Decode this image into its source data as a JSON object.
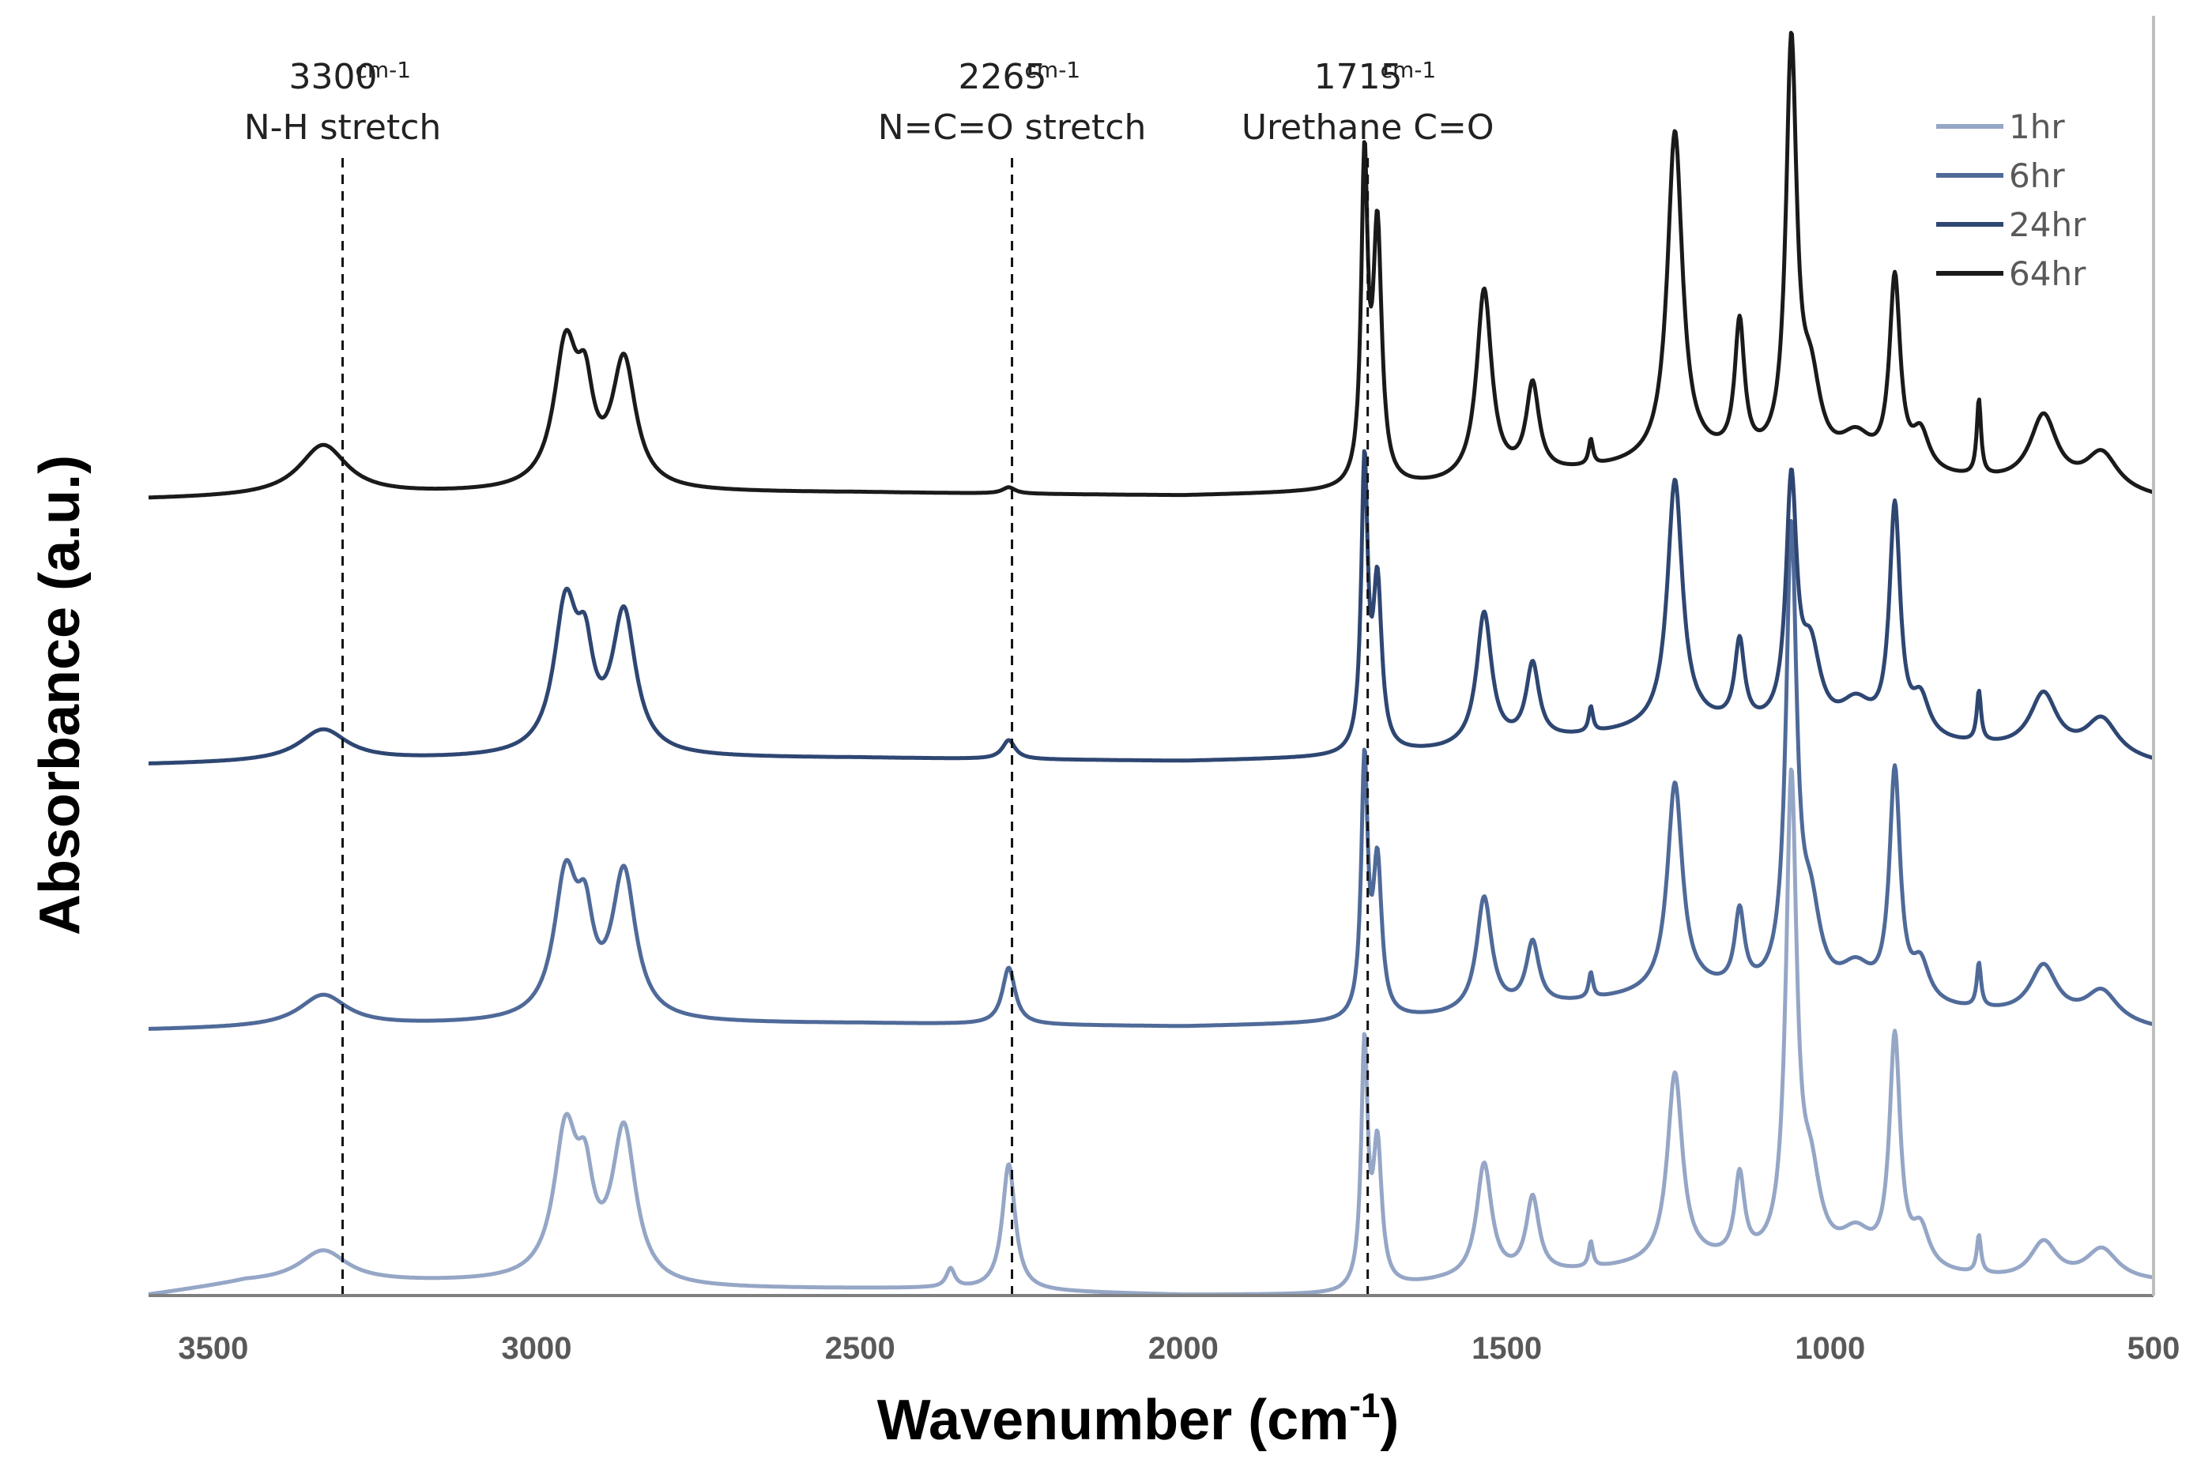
{
  "chart_data": {
    "type": "line",
    "title": "",
    "xlabel": "Wavenumber (cm",
    "xlabel_sup": "-1",
    "xlabel_close": ")",
    "ylabel": "Absorbance (a.u.)",
    "xlim": [
      3600,
      500
    ],
    "x_reversed": true,
    "x_ticks": [
      3500,
      3000,
      2500,
      2000,
      1500,
      1000,
      500
    ],
    "x_tick_labels": [
      "3500",
      "3000",
      "2500",
      "2000",
      "1500",
      "1000",
      "500"
    ],
    "y_ticks_shown": false,
    "grid": false,
    "legend_position": "top-right",
    "annotations": [
      {
        "x": 3300,
        "value": "3300",
        "unit": "cm-1",
        "label": "N-H stretch"
      },
      {
        "x": 2265,
        "value": "2265",
        "unit": "cm-1",
        "label": "N=C=O stretch"
      },
      {
        "x": 1715,
        "value": "1715",
        "unit": "cm-1",
        "label": "Urethane C=O"
      }
    ],
    "series_order_bottom_to_top": [
      "1hr",
      "6hr",
      "24hr",
      "64hr"
    ],
    "series": [
      {
        "name": "1hr",
        "color": "#95A6C6",
        "offset": 0.0,
        "baseline": [
          [
            3600,
            0.0
          ],
          [
            3450,
            0.02
          ],
          [
            3350,
            0.02
          ],
          [
            3000,
            0.02
          ],
          [
            2800,
            0.01
          ],
          [
            2400,
            0.01
          ],
          [
            2200,
            0.005
          ],
          [
            2000,
            0.0
          ],
          [
            1760,
            0.0
          ],
          [
            1600,
            0.02
          ],
          [
            1200,
            0.05
          ],
          [
            1000,
            0.04
          ],
          [
            700,
            0.02
          ],
          [
            500,
            0.02
          ]
        ],
        "peaks": [
          {
            "x": 3330,
            "h": 0.05,
            "w": 45
          },
          {
            "x": 2955,
            "h": 0.23,
            "w": 22
          },
          {
            "x": 2925,
            "h": 0.12,
            "w": 15
          },
          {
            "x": 2865,
            "h": 0.24,
            "w": 22
          },
          {
            "x": 2360,
            "h": 0.03,
            "w": 8
          },
          {
            "x": 2270,
            "h": 0.2,
            "w": 12
          },
          {
            "x": 1720,
            "h": 0.38,
            "w": 6
          },
          {
            "x": 1700,
            "h": 0.22,
            "w": 8
          },
          {
            "x": 1535,
            "h": 0.18,
            "w": 14
          },
          {
            "x": 1460,
            "h": 0.12,
            "w": 12
          },
          {
            "x": 1370,
            "h": 0.04,
            "w": 4
          },
          {
            "x": 1240,
            "h": 0.3,
            "w": 14
          },
          {
            "x": 1140,
            "h": 0.13,
            "w": 9
          },
          {
            "x": 1060,
            "h": 0.75,
            "w": 10
          },
          {
            "x": 1030,
            "h": 0.12,
            "w": 18
          },
          {
            "x": 960,
            "h": 0.05,
            "w": 30
          },
          {
            "x": 900,
            "h": 0.36,
            "w": 10
          },
          {
            "x": 860,
            "h": 0.06,
            "w": 16
          },
          {
            "x": 770,
            "h": 0.06,
            "w": 4
          },
          {
            "x": 670,
            "h": 0.06,
            "w": 25
          },
          {
            "x": 580,
            "h": 0.05,
            "w": 30
          }
        ]
      },
      {
        "name": "6hr",
        "color": "#4F6A99",
        "offset": 0.42,
        "baseline": [
          [
            3600,
            0.0
          ],
          [
            3000,
            0.01
          ],
          [
            2500,
            0.01
          ],
          [
            2000,
            0.005
          ],
          [
            1760,
            0.01
          ],
          [
            1600,
            0.02
          ],
          [
            1200,
            0.06
          ],
          [
            1000,
            0.04
          ],
          [
            700,
            0.02
          ],
          [
            500,
            0.0
          ]
        ],
        "peaks": [
          {
            "x": 3330,
            "h": 0.05,
            "w": 45
          },
          {
            "x": 2955,
            "h": 0.22,
            "w": 22
          },
          {
            "x": 2925,
            "h": 0.12,
            "w": 15
          },
          {
            "x": 2865,
            "h": 0.23,
            "w": 22
          },
          {
            "x": 2270,
            "h": 0.09,
            "w": 12
          },
          {
            "x": 1720,
            "h": 0.4,
            "w": 6
          },
          {
            "x": 1700,
            "h": 0.24,
            "w": 8
          },
          {
            "x": 1535,
            "h": 0.18,
            "w": 14
          },
          {
            "x": 1460,
            "h": 0.1,
            "w": 12
          },
          {
            "x": 1370,
            "h": 0.04,
            "w": 4
          },
          {
            "x": 1240,
            "h": 0.33,
            "w": 14
          },
          {
            "x": 1140,
            "h": 0.12,
            "w": 9
          },
          {
            "x": 1060,
            "h": 0.72,
            "w": 10
          },
          {
            "x": 1030,
            "h": 0.12,
            "w": 18
          },
          {
            "x": 960,
            "h": 0.05,
            "w": 30
          },
          {
            "x": 900,
            "h": 0.36,
            "w": 10
          },
          {
            "x": 860,
            "h": 0.06,
            "w": 16
          },
          {
            "x": 770,
            "h": 0.07,
            "w": 4
          },
          {
            "x": 670,
            "h": 0.08,
            "w": 25
          },
          {
            "x": 580,
            "h": 0.05,
            "w": 30
          }
        ]
      },
      {
        "name": "24hr",
        "color": "#2E4672",
        "offset": 0.84,
        "baseline": [
          [
            3600,
            0.0
          ],
          [
            3000,
            0.01
          ],
          [
            2500,
            0.01
          ],
          [
            2000,
            0.005
          ],
          [
            1760,
            0.01
          ],
          [
            1600,
            0.02
          ],
          [
            1200,
            0.06
          ],
          [
            1000,
            0.04
          ],
          [
            700,
            0.02
          ],
          [
            500,
            0.0
          ]
        ],
        "peaks": [
          {
            "x": 3330,
            "h": 0.05,
            "w": 45
          },
          {
            "x": 2955,
            "h": 0.23,
            "w": 22
          },
          {
            "x": 2925,
            "h": 0.12,
            "w": 15
          },
          {
            "x": 2865,
            "h": 0.22,
            "w": 22
          },
          {
            "x": 2270,
            "h": 0.03,
            "w": 12
          },
          {
            "x": 1720,
            "h": 0.45,
            "w": 6
          },
          {
            "x": 1700,
            "h": 0.26,
            "w": 8
          },
          {
            "x": 1535,
            "h": 0.21,
            "w": 14
          },
          {
            "x": 1460,
            "h": 0.12,
            "w": 12
          },
          {
            "x": 1370,
            "h": 0.04,
            "w": 4
          },
          {
            "x": 1240,
            "h": 0.39,
            "w": 14
          },
          {
            "x": 1140,
            "h": 0.13,
            "w": 9
          },
          {
            "x": 1060,
            "h": 0.38,
            "w": 10
          },
          {
            "x": 1030,
            "h": 0.12,
            "w": 18
          },
          {
            "x": 960,
            "h": 0.05,
            "w": 30
          },
          {
            "x": 900,
            "h": 0.36,
            "w": 10
          },
          {
            "x": 860,
            "h": 0.06,
            "w": 16
          },
          {
            "x": 770,
            "h": 0.08,
            "w": 4
          },
          {
            "x": 670,
            "h": 0.09,
            "w": 25
          },
          {
            "x": 580,
            "h": 0.06,
            "w": 30
          }
        ]
      },
      {
        "name": "64hr",
        "color": "#1A1A1A",
        "offset": 1.26,
        "baseline": [
          [
            3600,
            0.0
          ],
          [
            3000,
            0.01
          ],
          [
            2500,
            0.01
          ],
          [
            2000,
            0.005
          ],
          [
            1760,
            0.01
          ],
          [
            1600,
            0.02
          ],
          [
            1200,
            0.06
          ],
          [
            1000,
            0.04
          ],
          [
            700,
            0.02
          ],
          [
            500,
            0.0
          ]
        ],
        "peaks": [
          {
            "x": 3330,
            "h": 0.08,
            "w": 45
          },
          {
            "x": 2955,
            "h": 0.22,
            "w": 22
          },
          {
            "x": 2925,
            "h": 0.12,
            "w": 15
          },
          {
            "x": 2865,
            "h": 0.2,
            "w": 22
          },
          {
            "x": 2270,
            "h": 0.01,
            "w": 12
          },
          {
            "x": 1720,
            "h": 0.5,
            "w": 6
          },
          {
            "x": 1700,
            "h": 0.4,
            "w": 8
          },
          {
            "x": 1535,
            "h": 0.3,
            "w": 14
          },
          {
            "x": 1460,
            "h": 0.14,
            "w": 12
          },
          {
            "x": 1370,
            "h": 0.04,
            "w": 4
          },
          {
            "x": 1240,
            "h": 0.52,
            "w": 14
          },
          {
            "x": 1140,
            "h": 0.21,
            "w": 9
          },
          {
            "x": 1060,
            "h": 0.65,
            "w": 10
          },
          {
            "x": 1030,
            "h": 0.12,
            "w": 18
          },
          {
            "x": 960,
            "h": 0.05,
            "w": 30
          },
          {
            "x": 900,
            "h": 0.3,
            "w": 10
          },
          {
            "x": 860,
            "h": 0.06,
            "w": 16
          },
          {
            "x": 770,
            "h": 0.12,
            "w": 4
          },
          {
            "x": 670,
            "h": 0.11,
            "w": 25
          },
          {
            "x": 580,
            "h": 0.06,
            "w": 30
          }
        ]
      }
    ]
  }
}
